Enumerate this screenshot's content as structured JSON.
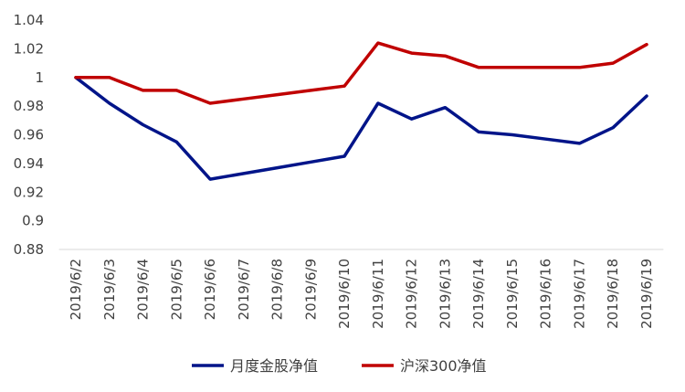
{
  "chart_data": {
    "type": "line",
    "title": "",
    "xlabel": "",
    "ylabel": "",
    "categories": [
      "2019/6/2",
      "2019/6/3",
      "2019/6/4",
      "2019/6/5",
      "2019/6/6",
      "2019/6/7",
      "2019/6/8",
      "2019/6/9",
      "2019/6/10",
      "2019/6/11",
      "2019/6/12",
      "2019/6/13",
      "2019/6/14",
      "2019/6/15",
      "2019/6/16",
      "2019/6/17",
      "2019/6/18",
      "2019/6/19"
    ],
    "ylim": [
      0.88,
      1.04
    ],
    "yticks": [
      0.88,
      0.9,
      0.92,
      0.94,
      0.96,
      0.98,
      1,
      1.02,
      1.04
    ],
    "ytick_labels": [
      "0.88",
      "0.9",
      "0.92",
      "0.94",
      "0.96",
      "0.98",
      "1",
      "1.02",
      "1.04"
    ],
    "grid": false,
    "legend_position": "bottom",
    "series": [
      {
        "name": "月度金股净值",
        "color": "#001489",
        "values": [
          1.0,
          0.982,
          0.967,
          0.955,
          0.929,
          0.933,
          0.937,
          0.941,
          0.945,
          0.982,
          0.971,
          0.979,
          0.962,
          0.96,
          0.957,
          0.954,
          0.965,
          0.987
        ]
      },
      {
        "name": "沪深300净值",
        "color": "#C00000",
        "values": [
          1.0,
          1.0,
          0.991,
          0.991,
          0.982,
          0.985,
          0.988,
          0.991,
          0.994,
          1.024,
          1.017,
          1.015,
          1.007,
          1.007,
          1.007,
          1.007,
          1.01,
          1.023
        ]
      }
    ]
  }
}
